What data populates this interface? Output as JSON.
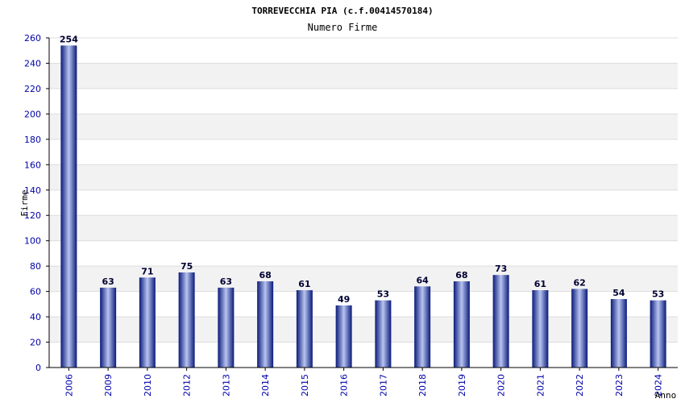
{
  "chart_data": {
    "type": "bar",
    "title": "TORREVECCHIA PIA (c.f.00414570184)",
    "subtitle": "Numero Firme",
    "xlabel": "Anno",
    "ylabel": "Firme",
    "categories": [
      "2006",
      "2009",
      "2010",
      "2012",
      "2013",
      "2014",
      "2015",
      "2016",
      "2017",
      "2018",
      "2019",
      "2020",
      "2021",
      "2022",
      "2023",
      "2024"
    ],
    "values": [
      254,
      63,
      71,
      75,
      63,
      68,
      61,
      49,
      53,
      64,
      68,
      73,
      61,
      62,
      54,
      53
    ],
    "ylim": [
      0,
      260
    ],
    "yticks": [
      0,
      20,
      40,
      60,
      80,
      100,
      120,
      140,
      160,
      180,
      200,
      220,
      240,
      260
    ],
    "grid": true,
    "colors": {
      "bar_dark": "#0a1a7a",
      "bar_light": "#b8c4f0",
      "band": "#f2f2f2",
      "grid": "#dddddd",
      "tick_text": "#0000aa"
    }
  }
}
